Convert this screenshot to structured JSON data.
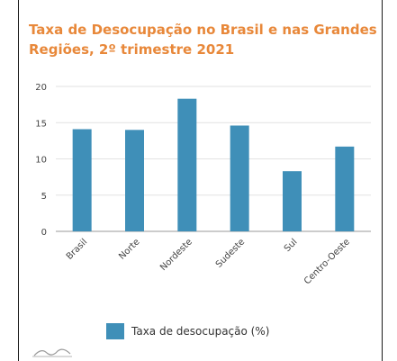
{
  "header": {
    "title": "Taxa de Desocupação no Brasil e nas Grandes Regiões, 2º trimestre 2021"
  },
  "colors": {
    "title": "#e8883a",
    "bar": "#3f8fb8",
    "grid": "#e2e2e2",
    "axis_text": "#444444"
  },
  "legend": {
    "label": "Taxa de desocupação (%)",
    "placement": "bottom"
  },
  "logo": {
    "icon": "wave-logo-icon"
  },
  "chart_data": {
    "type": "bar",
    "title": "Taxa de Desocupação no Brasil e nas Grandes Regiões, 2º trimestre 2021",
    "xlabel": "",
    "ylabel": "",
    "categories": [
      "Brasil",
      "Norte",
      "Nordeste",
      "Sudeste",
      "Sul",
      "Centro-Oeste"
    ],
    "series": [
      {
        "name": "Taxa de desocupação (%)",
        "values": [
          14.1,
          14.0,
          18.3,
          14.6,
          8.3,
          11.7
        ]
      }
    ],
    "ylim": [
      0,
      20
    ],
    "yticks": [
      0,
      5,
      10,
      15,
      20
    ],
    "grid": true
  }
}
